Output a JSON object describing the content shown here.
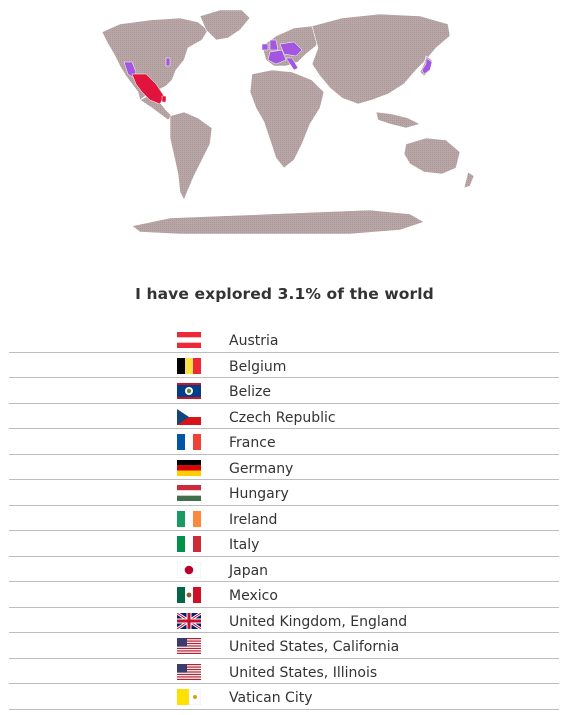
{
  "map": {
    "land_color": "#b9a7a7",
    "visited_color": "#a356e0",
    "highlight_color": "#e0143c"
  },
  "headline": "I have explored 3.1% of the world",
  "countries": [
    {
      "name": "Austria",
      "flag": "austria-flag-icon"
    },
    {
      "name": "Belgium",
      "flag": "belgium-flag-icon"
    },
    {
      "name": "Belize",
      "flag": "belize-flag-icon"
    },
    {
      "name": "Czech Republic",
      "flag": "czech-republic-flag-icon"
    },
    {
      "name": "France",
      "flag": "france-flag-icon"
    },
    {
      "name": "Germany",
      "flag": "germany-flag-icon"
    },
    {
      "name": "Hungary",
      "flag": "hungary-flag-icon"
    },
    {
      "name": "Ireland",
      "flag": "ireland-flag-icon"
    },
    {
      "name": "Italy",
      "flag": "italy-flag-icon"
    },
    {
      "name": "Japan",
      "flag": "japan-flag-icon"
    },
    {
      "name": "Mexico",
      "flag": "mexico-flag-icon"
    },
    {
      "name": "United Kingdom, England",
      "flag": "england-flag-icon"
    },
    {
      "name": "United States, California",
      "flag": "united-states-flag-icon"
    },
    {
      "name": "United States, Illinois",
      "flag": "united-states-flag-icon"
    },
    {
      "name": "Vatican City",
      "flag": "vatican-city-flag-icon"
    }
  ]
}
